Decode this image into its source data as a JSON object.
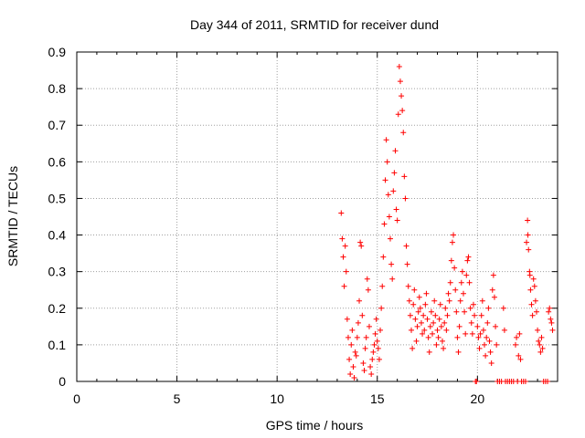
{
  "chart_data": {
    "type": "scatter",
    "title": "Day 344 of 2011, SRMTID for receiver dund",
    "xlabel": "GPS time / hours",
    "ylabel": "SRMTID / TECUs",
    "xlim": [
      0,
      24
    ],
    "ylim": [
      0,
      0.9
    ],
    "xticks": [
      0,
      5,
      10,
      15,
      20
    ],
    "yticks": [
      0,
      0.1,
      0.2,
      0.3,
      0.4,
      0.5,
      0.6,
      0.7,
      0.8,
      0.9
    ],
    "xtick_labels": [
      "0",
      "5",
      "10",
      "15",
      "20"
    ],
    "ytick_labels": [
      "0",
      "0.1",
      "0.2",
      "0.3",
      "0.4",
      "0.5",
      "0.6",
      "0.7",
      "0.8",
      "0.9"
    ],
    "grid": true,
    "marker": "+",
    "color": "#ff0000",
    "series": [
      {
        "name": "SRMTID",
        "points": [
          [
            13.2,
            0.46
          ],
          [
            13.25,
            0.39
          ],
          [
            13.3,
            0.34
          ],
          [
            13.35,
            0.26
          ],
          [
            13.4,
            0.37
          ],
          [
            13.45,
            0.3
          ],
          [
            13.5,
            0.17
          ],
          [
            13.55,
            0.12
          ],
          [
            13.6,
            0.06
          ],
          [
            13.65,
            0.02
          ],
          [
            13.7,
            0.1
          ],
          [
            13.75,
            0.14
          ],
          [
            13.8,
            0.04
          ],
          [
            13.85,
            0.01
          ],
          [
            13.9,
            0.08
          ],
          [
            13.95,
            0.07
          ],
          [
            14.0,
            0.12
          ],
          [
            14.05,
            0.16
          ],
          [
            14.1,
            0.22
          ],
          [
            14.15,
            0.38
          ],
          [
            14.2,
            0.37
          ],
          [
            14.25,
            0.18
          ],
          [
            14.3,
            0.05
          ],
          [
            14.35,
            0.03
          ],
          [
            14.4,
            0.09
          ],
          [
            14.45,
            0.12
          ],
          [
            14.5,
            0.28
          ],
          [
            14.55,
            0.25
          ],
          [
            14.6,
            0.15
          ],
          [
            14.65,
            0.04
          ],
          [
            14.7,
            0.02
          ],
          [
            14.75,
            0.06
          ],
          [
            14.8,
            0.08
          ],
          [
            14.85,
            0.1
          ],
          [
            14.9,
            0.13
          ],
          [
            14.95,
            0.17
          ],
          [
            15.0,
            0.11
          ],
          [
            15.05,
            0.09
          ],
          [
            15.1,
            0.06
          ],
          [
            15.15,
            0.14
          ],
          [
            15.2,
            0.2
          ],
          [
            15.25,
            0.26
          ],
          [
            15.3,
            0.34
          ],
          [
            15.35,
            0.43
          ],
          [
            15.4,
            0.55
          ],
          [
            15.45,
            0.66
          ],
          [
            15.5,
            0.6
          ],
          [
            15.55,
            0.51
          ],
          [
            15.6,
            0.45
          ],
          [
            15.65,
            0.39
          ],
          [
            15.7,
            0.32
          ],
          [
            15.75,
            0.28
          ],
          [
            15.8,
            0.52
          ],
          [
            15.85,
            0.57
          ],
          [
            15.9,
            0.63
          ],
          [
            15.95,
            0.47
          ],
          [
            16.0,
            0.44
          ],
          [
            16.05,
            0.73
          ],
          [
            16.1,
            0.86
          ],
          [
            16.15,
            0.82
          ],
          [
            16.2,
            0.78
          ],
          [
            16.25,
            0.74
          ],
          [
            16.3,
            0.68
          ],
          [
            16.35,
            0.56
          ],
          [
            16.4,
            0.5
          ],
          [
            16.45,
            0.37
          ],
          [
            16.5,
            0.32
          ],
          [
            16.55,
            0.26
          ],
          [
            16.6,
            0.22
          ],
          [
            16.65,
            0.18
          ],
          [
            16.7,
            0.14
          ],
          [
            16.75,
            0.09
          ],
          [
            16.8,
            0.21
          ],
          [
            16.85,
            0.25
          ],
          [
            16.9,
            0.17
          ],
          [
            16.95,
            0.11
          ],
          [
            17.0,
            0.15
          ],
          [
            17.05,
            0.19
          ],
          [
            17.1,
            0.23
          ],
          [
            17.15,
            0.2
          ],
          [
            17.2,
            0.16
          ],
          [
            17.25,
            0.13
          ],
          [
            17.3,
            0.18
          ],
          [
            17.35,
            0.14
          ],
          [
            17.4,
            0.21
          ],
          [
            17.45,
            0.24
          ],
          [
            17.5,
            0.17
          ],
          [
            17.55,
            0.12
          ],
          [
            17.6,
            0.08
          ],
          [
            17.65,
            0.15
          ],
          [
            17.7,
            0.19
          ],
          [
            17.75,
            0.13
          ],
          [
            17.8,
            0.16
          ],
          [
            17.85,
            0.22
          ],
          [
            17.9,
            0.18
          ],
          [
            17.95,
            0.1
          ],
          [
            18.0,
            0.14
          ],
          [
            18.05,
            0.12
          ],
          [
            18.1,
            0.17
          ],
          [
            18.15,
            0.21
          ],
          [
            18.2,
            0.15
          ],
          [
            18.25,
            0.11
          ],
          [
            18.3,
            0.09
          ],
          [
            18.35,
            0.16
          ],
          [
            18.4,
            0.2
          ],
          [
            18.45,
            0.14
          ],
          [
            18.5,
            0.18
          ],
          [
            18.55,
            0.24
          ],
          [
            18.6,
            0.22
          ],
          [
            18.65,
            0.27
          ],
          [
            18.7,
            0.33
          ],
          [
            18.75,
            0.38
          ],
          [
            18.8,
            0.4
          ],
          [
            18.85,
            0.31
          ],
          [
            18.9,
            0.25
          ],
          [
            18.95,
            0.19
          ],
          [
            19.0,
            0.12
          ],
          [
            19.05,
            0.08
          ],
          [
            19.1,
            0.15
          ],
          [
            19.15,
            0.22
          ],
          [
            19.2,
            0.27
          ],
          [
            19.25,
            0.3
          ],
          [
            19.3,
            0.24
          ],
          [
            19.35,
            0.19
          ],
          [
            19.4,
            0.13
          ],
          [
            19.45,
            0.29
          ],
          [
            19.5,
            0.33
          ],
          [
            19.55,
            0.34
          ],
          [
            19.6,
            0.27
          ],
          [
            19.65,
            0.2
          ],
          [
            19.7,
            0.16
          ],
          [
            19.75,
            0.13
          ],
          [
            19.8,
            0.21
          ],
          [
            19.85,
            0.18
          ],
          [
            19.9,
            0.0
          ],
          [
            19.95,
            0.0
          ],
          [
            20.0,
            0.15
          ],
          [
            20.05,
            0.12
          ],
          [
            20.1,
            0.09
          ],
          [
            20.15,
            0.13
          ],
          [
            20.2,
            0.18
          ],
          [
            20.25,
            0.22
          ],
          [
            20.3,
            0.14
          ],
          [
            20.35,
            0.1
          ],
          [
            20.4,
            0.07
          ],
          [
            20.45,
            0.12
          ],
          [
            20.5,
            0.16
          ],
          [
            20.55,
            0.2
          ],
          [
            20.6,
            0.11
          ],
          [
            20.65,
            0.08
          ],
          [
            20.7,
            0.05
          ],
          [
            20.75,
            0.25
          ],
          [
            20.8,
            0.29
          ],
          [
            20.85,
            0.23
          ],
          [
            20.9,
            0.15
          ],
          [
            20.95,
            0.1
          ],
          [
            21.0,
            0.0
          ],
          [
            21.1,
            0.0
          ],
          [
            21.2,
            0.0
          ],
          [
            21.3,
            0.2
          ],
          [
            21.35,
            0.14
          ],
          [
            21.4,
            0.0
          ],
          [
            21.5,
            0.0
          ],
          [
            21.6,
            0.0
          ],
          [
            21.7,
            0.0
          ],
          [
            21.8,
            0.0
          ],
          [
            21.9,
            0.1
          ],
          [
            21.95,
            0.12
          ],
          [
            22.0,
            0.0
          ],
          [
            22.05,
            0.07
          ],
          [
            22.1,
            0.13
          ],
          [
            22.15,
            0.06
          ],
          [
            22.2,
            0.0
          ],
          [
            22.3,
            0.0
          ],
          [
            22.4,
            0.0
          ],
          [
            22.45,
            0.38
          ],
          [
            22.5,
            0.44
          ],
          [
            22.52,
            0.4
          ],
          [
            22.55,
            0.36
          ],
          [
            22.6,
            0.3
          ],
          [
            22.62,
            0.29
          ],
          [
            22.65,
            0.25
          ],
          [
            22.7,
            0.21
          ],
          [
            22.75,
            0.18
          ],
          [
            22.8,
            0.28
          ],
          [
            22.85,
            0.26
          ],
          [
            22.9,
            0.22
          ],
          [
            22.95,
            0.19
          ],
          [
            23.0,
            0.14
          ],
          [
            23.05,
            0.11
          ],
          [
            23.1,
            0.1
          ],
          [
            23.15,
            0.08
          ],
          [
            23.2,
            0.12
          ],
          [
            23.25,
            0.09
          ],
          [
            23.3,
            0.0
          ],
          [
            23.4,
            0.0
          ],
          [
            23.5,
            0.0
          ],
          [
            23.55,
            0.19
          ],
          [
            23.6,
            0.2
          ],
          [
            23.65,
            0.17
          ],
          [
            23.7,
            0.16
          ],
          [
            23.75,
            0.14
          ]
        ]
      }
    ]
  }
}
